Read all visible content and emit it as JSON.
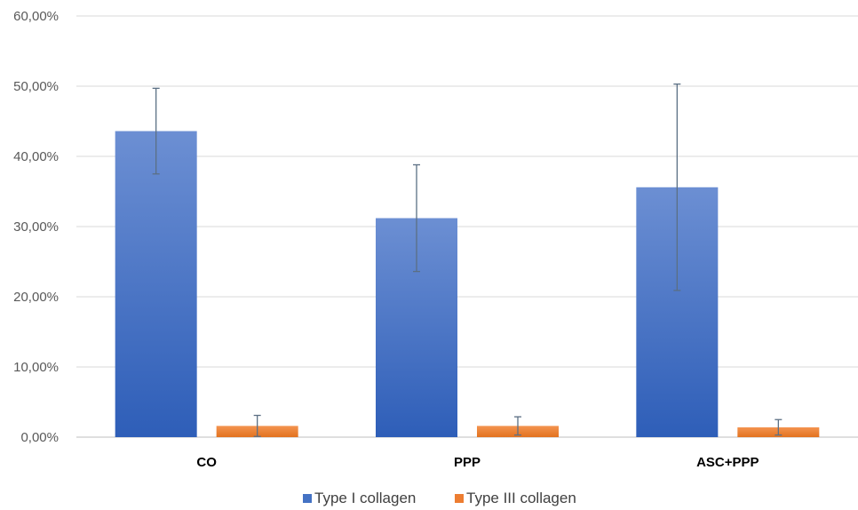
{
  "chart_data": {
    "type": "bar",
    "title": "",
    "xlabel": "",
    "ylabel": "",
    "categories": [
      "CO",
      "PPP",
      "ASC+PPP"
    ],
    "series": [
      {
        "name": "Type I collagen",
        "values": [
          0.436,
          0.312,
          0.356
        ],
        "error": [
          0.061,
          0.076,
          0.147
        ],
        "color": "#4472C4"
      },
      {
        "name": "Type III collagen",
        "values": [
          0.016,
          0.016,
          0.014
        ],
        "error": [
          0.015,
          0.013,
          0.011
        ],
        "color": "#ED7D31"
      }
    ],
    "ylim": [
      0,
      0.6
    ],
    "yticks": [
      0,
      0.1,
      0.2,
      0.3,
      0.4,
      0.5,
      0.6
    ],
    "ytick_labels": [
      "0,00%",
      "10,00%",
      "20,00%",
      "30,00%",
      "40,00%",
      "50,00%",
      "60,00%"
    ],
    "grid": true,
    "legend": "bottom",
    "error_bar_color": "#5B6F84"
  }
}
